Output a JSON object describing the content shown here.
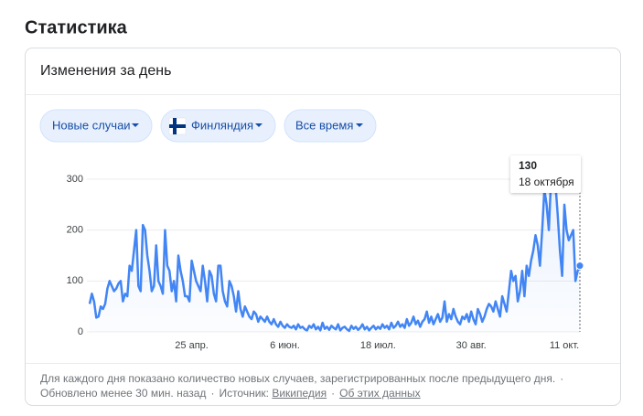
{
  "header": {
    "title": "Статистика"
  },
  "card": {
    "title": "Изменения за день",
    "filters": [
      "Новые случаи",
      "Финляндия",
      "Все время"
    ],
    "footer": {
      "note": "Для каждого дня показано количество новых случаев, зарегистрированных после предыдущего дня.",
      "separator": "·",
      "updated": "Обновлено менее 30 мин. назад",
      "source_label": "Источник:",
      "source_link": "Википедия",
      "about_link": "Об этих данных"
    }
  },
  "chart_data": {
    "type": "line",
    "color": "#4285f4",
    "grid": true,
    "ylim": [
      0,
      320
    ],
    "yticks": [
      0,
      100,
      200,
      300
    ],
    "tooltip_date": "18 октября",
    "categories": [
      null,
      null,
      null,
      null,
      null,
      null,
      null,
      null,
      null,
      null,
      null,
      null,
      null,
      null,
      null,
      null,
      null,
      null,
      null,
      null,
      null,
      null,
      null,
      null,
      null,
      null,
      null,
      null,
      null,
      null,
      null,
      null,
      null,
      null,
      null,
      null,
      null,
      null,
      null,
      null,
      null,
      null,
      null,
      null,
      null,
      null,
      "25 апр.",
      null,
      null,
      null,
      null,
      null,
      null,
      null,
      null,
      null,
      null,
      null,
      null,
      null,
      null,
      null,
      null,
      null,
      null,
      null,
      null,
      null,
      null,
      null,
      null,
      null,
      null,
      null,
      null,
      null,
      null,
      null,
      null,
      null,
      null,
      null,
      null,
      null,
      null,
      null,
      null,
      null,
      "6 июн.",
      null,
      null,
      null,
      null,
      null,
      null,
      null,
      null,
      null,
      null,
      null,
      null,
      null,
      null,
      null,
      null,
      null,
      null,
      null,
      null,
      null,
      null,
      null,
      null,
      null,
      null,
      null,
      null,
      null,
      null,
      null,
      null,
      null,
      null,
      null,
      null,
      null,
      null,
      null,
      null,
      null,
      "18 июл.",
      null,
      null,
      null,
      null,
      null,
      null,
      null,
      null,
      null,
      null,
      null,
      null,
      null,
      null,
      null,
      null,
      null,
      null,
      null,
      null,
      null,
      null,
      null,
      null,
      null,
      null,
      null,
      null,
      null,
      null,
      null,
      null,
      null,
      null,
      null,
      null,
      null,
      null,
      null,
      null,
      null,
      "30 авг.",
      null,
      null,
      null,
      null,
      null,
      null,
      null,
      null,
      null,
      null,
      null,
      null,
      null,
      null,
      null,
      null,
      null,
      null,
      null,
      null,
      null,
      null,
      null,
      null,
      null,
      null,
      null,
      null,
      null,
      null,
      null,
      null,
      null,
      null,
      null,
      null,
      null,
      null,
      null,
      null,
      null,
      "11 окт.",
      null,
      null,
      null,
      null,
      null,
      null,
      null
    ],
    "values": [
      55,
      75,
      60,
      28,
      30,
      50,
      45,
      55,
      85,
      100,
      90,
      80,
      85,
      95,
      100,
      60,
      75,
      70,
      130,
      120,
      160,
      200,
      90,
      80,
      210,
      200,
      150,
      120,
      80,
      90,
      170,
      100,
      90,
      75,
      200,
      130,
      120,
      80,
      100,
      60,
      150,
      120,
      100,
      70,
      70,
      60,
      140,
      120,
      100,
      90,
      80,
      130,
      100,
      60,
      120,
      110,
      75,
      60,
      130,
      130,
      80,
      60,
      50,
      100,
      90,
      70,
      40,
      80,
      45,
      30,
      50,
      40,
      30,
      25,
      40,
      35,
      20,
      30,
      25,
      20,
      30,
      20,
      15,
      25,
      15,
      10,
      20,
      12,
      8,
      15,
      10,
      8,
      12,
      5,
      15,
      8,
      10,
      5,
      3,
      12,
      8,
      15,
      5,
      10,
      3,
      18,
      6,
      10,
      4,
      12,
      8,
      5,
      15,
      3,
      8,
      10,
      5,
      2,
      12,
      6,
      10,
      4,
      8,
      15,
      5,
      10,
      3,
      8,
      12,
      5,
      10,
      6,
      15,
      8,
      12,
      5,
      18,
      8,
      12,
      20,
      10,
      15,
      8,
      25,
      12,
      18,
      30,
      15,
      22,
      10,
      20,
      25,
      40,
      18,
      30,
      15,
      25,
      35,
      20,
      28,
      60,
      20,
      35,
      25,
      45,
      30,
      20,
      15,
      30,
      25,
      35,
      20,
      40,
      25,
      15,
      45,
      35,
      20,
      30,
      45,
      55,
      50,
      40,
      60,
      45,
      30,
      70,
      55,
      40,
      80,
      120,
      100,
      110,
      60,
      80,
      120,
      70,
      130,
      110,
      140,
      160,
      190,
      170,
      130,
      200,
      280,
      250,
      200,
      300,
      320,
      290,
      230,
      160,
      110,
      250,
      200,
      180,
      190,
      200,
      100,
      120,
      130
    ]
  }
}
